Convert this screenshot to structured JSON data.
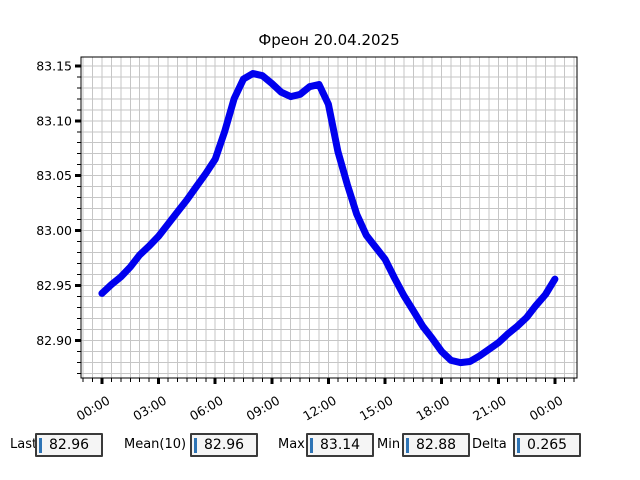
{
  "title": "Фреон 20.04.2025",
  "colors": {
    "line": "#0000ee",
    "grid": "#c6c6c6",
    "axis": "#000000",
    "cursor": "#2e74b5",
    "box_bg": "#f5f5f5",
    "background": "#ffffff"
  },
  "chart_data": {
    "type": "line",
    "title": "Фреон 20.04.2025",
    "xlabel": "",
    "ylabel": "",
    "grid": true,
    "legend": "none",
    "x_hours": [
      0,
      0.5,
      1,
      1.5,
      2,
      2.5,
      3,
      3.5,
      4,
      4.5,
      5,
      5.5,
      6,
      6.5,
      7,
      7.5,
      8,
      8.5,
      9,
      9.5,
      10,
      10.5,
      11,
      11.5,
      12,
      12.5,
      13,
      13.5,
      14,
      14.5,
      15,
      15.5,
      16,
      16.5,
      17,
      17.5,
      18,
      18.5,
      19,
      19.5,
      20,
      20.5,
      21,
      21.5,
      22,
      22.5,
      23,
      23.5,
      24
    ],
    "values": [
      82.943,
      82.951,
      82.958,
      82.967,
      82.978,
      82.986,
      82.995,
      83.006,
      83.017,
      83.028,
      83.04,
      83.052,
      83.065,
      83.09,
      83.12,
      83.138,
      83.143,
      83.141,
      83.134,
      83.126,
      83.122,
      83.124,
      83.131,
      83.133,
      83.115,
      83.072,
      83.042,
      83.015,
      82.996,
      82.985,
      82.974,
      82.957,
      82.941,
      82.927,
      82.913,
      82.902,
      82.89,
      82.882,
      82.88,
      82.881,
      82.886,
      82.892,
      82.898,
      82.906,
      82.913,
      82.921,
      82.932,
      82.942,
      82.956
    ],
    "x_tick_labels": [
      "00:00",
      "03:00",
      "06:00",
      "09:00",
      "12:00",
      "15:00",
      "18:00",
      "21:00",
      "00:00"
    ],
    "x_tick_hours": [
      0,
      3,
      6,
      9,
      12,
      15,
      18,
      21,
      24
    ],
    "x_minor_step_hours": 0.5,
    "y_major_ticks": [
      82.9,
      82.95,
      83.0,
      83.05,
      83.1,
      83.15
    ],
    "y_minor_step": 0.01,
    "ylim": [
      82.866,
      83.158
    ],
    "xlim_hours": [
      -1.11,
      25.17
    ],
    "line_width": 7
  },
  "stats": [
    {
      "label": "Last",
      "value": "82.96"
    },
    {
      "label": "Mean(10)",
      "value": "82.96"
    },
    {
      "label": "Max",
      "value": "83.14"
    },
    {
      "label": "Min",
      "value": "82.88"
    },
    {
      "label": "Delta",
      "value": "0.265"
    }
  ]
}
